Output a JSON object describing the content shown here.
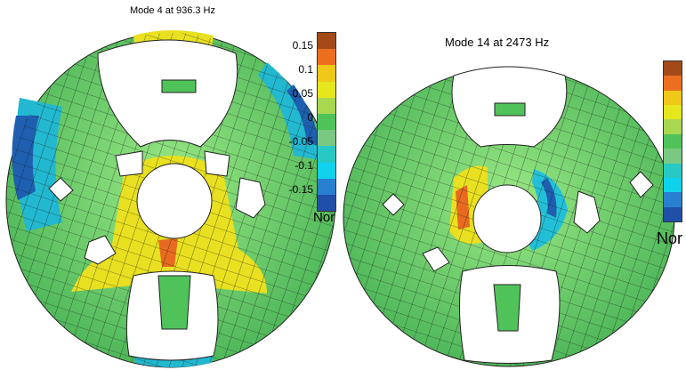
{
  "plots": [
    {
      "title": "Mode 4 at 936.3 Hz",
      "colorbar": {
        "colors": [
          "#a34a18",
          "#ec6f20",
          "#f0c818",
          "#e6e61c",
          "#a8d850",
          "#4fc35a",
          "#7ac982",
          "#28c8c4",
          "#10d2ec",
          "#2a80d0",
          "#1f4fa8"
        ],
        "ticks": [
          "0.15",
          "0.1",
          "0.05",
          "0",
          "-0.05",
          "-0.1",
          "-0.15"
        ],
        "label": "Nor"
      }
    },
    {
      "title": "Mode 14 at 2473 Hz",
      "colorbar": {
        "colors": [
          "#a34a18",
          "#ec6f20",
          "#f0c818",
          "#e6e61c",
          "#a8d850",
          "#4fc35a",
          "#7ac982",
          "#28c8c4",
          "#10d2ec",
          "#2a80d0",
          "#1f4fa8"
        ],
        "ticks": [],
        "label": "Nor"
      }
    }
  ],
  "colors": {
    "mesh_base": "#8ee07a",
    "mesh_lines": "#1a1a1a",
    "yellow": "#e8e020",
    "orange": "#e86a20",
    "cyan": "#22c0d8",
    "blue": "#1e5fb0"
  }
}
